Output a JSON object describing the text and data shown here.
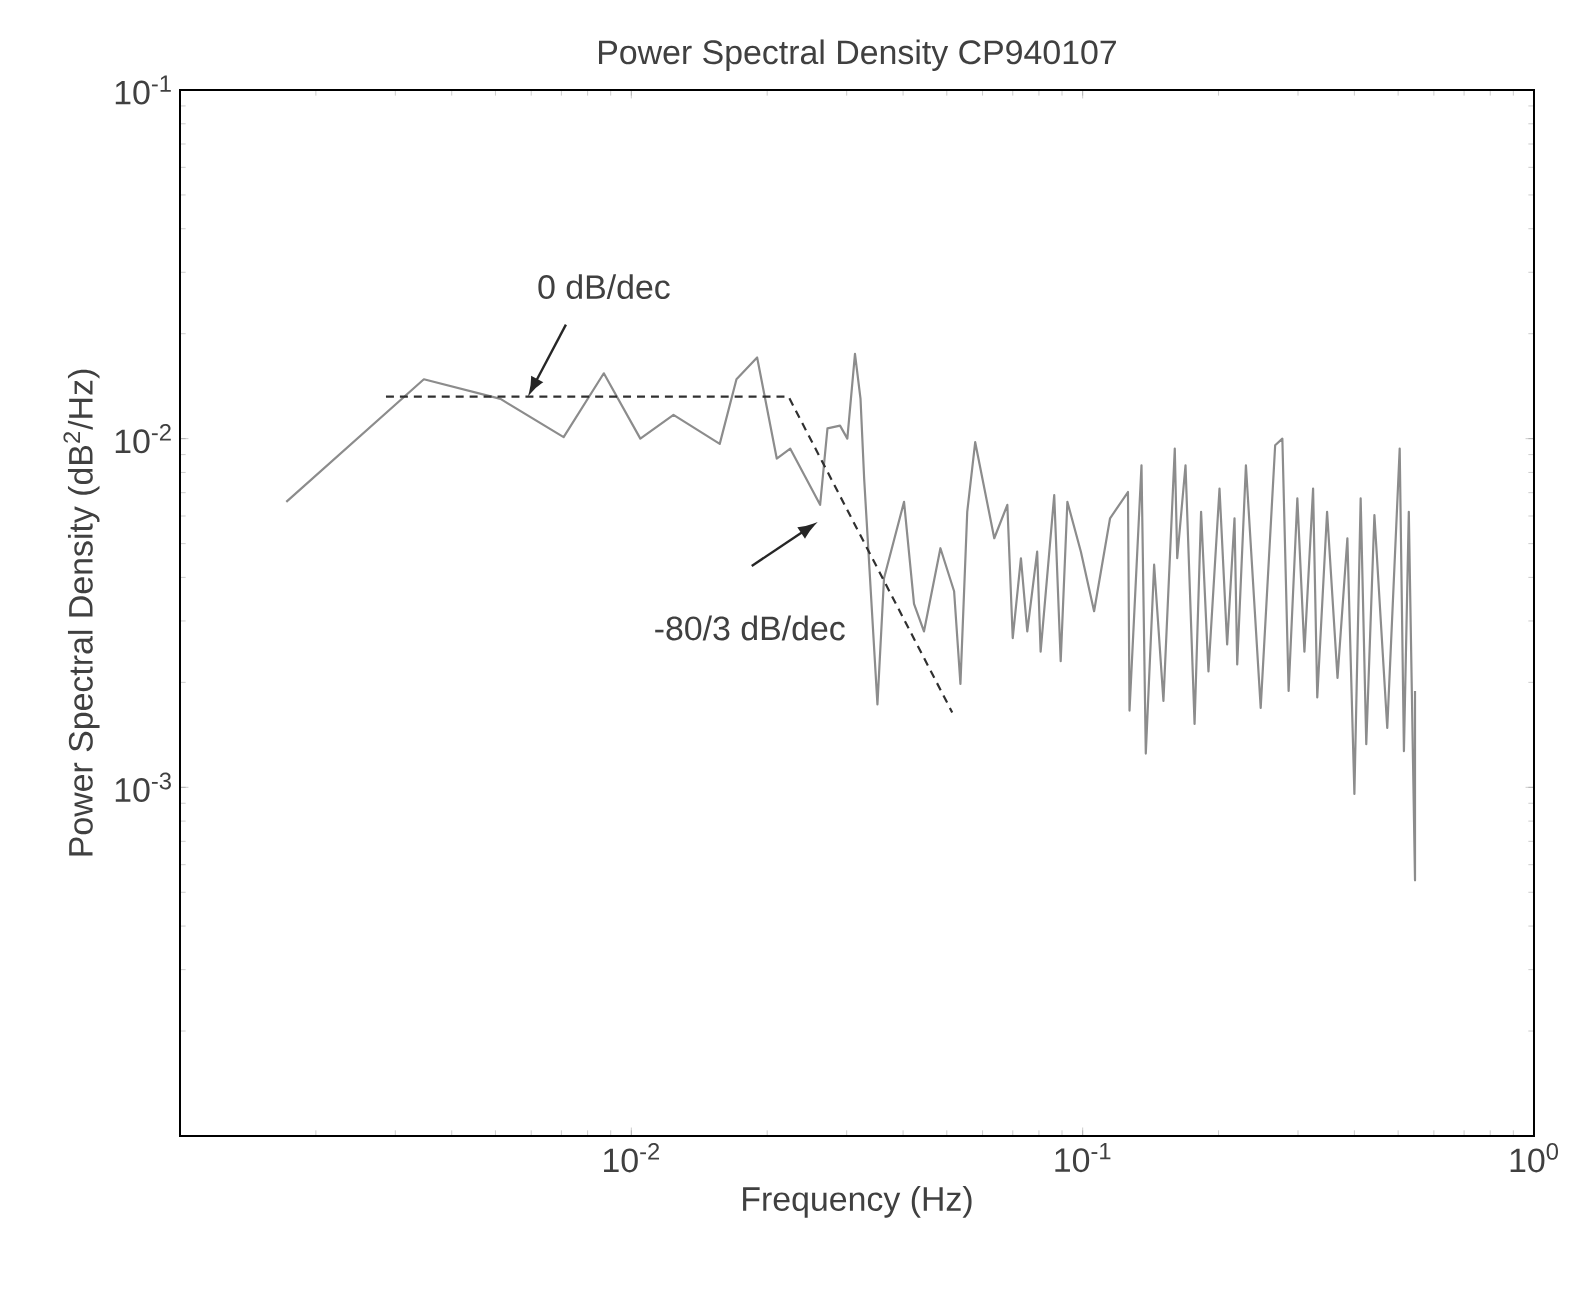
{
  "chart_data": {
    "type": "line",
    "title": "Power Spectral Density CP940107",
    "xlabel": "Frequency (Hz)",
    "ylabel": "Power Spectral Density (dB$^{2}$/Hz)",
    "log": "xy",
    "xlim": [
      0.001,
      1
    ],
    "ylim": [
      0.0001,
      0.1
    ],
    "xticks": [
      {
        "value": 0.001,
        "label": null
      },
      {
        "value": 0.01,
        "label": "10$^{-2}$"
      },
      {
        "value": 0.1,
        "label": "10$^{-1}$"
      },
      {
        "value": 1,
        "label": "10$^{0}$"
      }
    ],
    "yticks": [
      {
        "value": 0.0001,
        "label": null
      },
      {
        "value": 0.001,
        "label": "10$^{-3}$"
      },
      {
        "value": 0.01,
        "label": "10$^{-2}$"
      },
      {
        "value": 0.1,
        "label": "10$^{-1}$"
      }
    ],
    "annotations": [
      {
        "text": "0 dB/dec",
        "x": 0.0059,
        "y": 0.0132
      },
      "-80/3 dB/dec"
    ],
    "series": [
      {
        "line_style": "solid",
        "color": "#8c8c8c",
        "x": [
          0.00172,
          0.00347,
          0.00513,
          0.00708,
          0.00869,
          0.01047,
          0.0124,
          0.0157,
          0.0171,
          0.019,
          0.021,
          0.0225,
          0.0262,
          0.0272,
          0.029,
          0.0301,
          0.0313,
          0.0322,
          0.0328,
          0.0351,
          0.0363,
          0.0402,
          0.0423,
          0.0445,
          0.0484,
          0.0519,
          0.0536,
          0.0555,
          0.0578,
          0.0637,
          0.0681,
          0.07,
          0.073,
          0.0754,
          0.0793,
          0.0807,
          0.0865,
          0.0894,
          0.0925,
          0.0991,
          0.106,
          0.115,
          0.126,
          0.127,
          0.135,
          0.138,
          0.144,
          0.151,
          0.16,
          0.162,
          0.169,
          0.177,
          0.183,
          0.19,
          0.201,
          0.209,
          0.217,
          0.22,
          0.23,
          0.248,
          0.267,
          0.277,
          0.286,
          0.299,
          0.31,
          0.324,
          0.331,
          0.348,
          0.367,
          0.386,
          0.4,
          0.413,
          0.425,
          0.443,
          0.473,
          0.504,
          0.515,
          0.528,
          0.545,
          0.545
        ],
        "values": [
          0.00659,
          0.0148,
          0.013,
          0.0101,
          0.0154,
          0.01,
          0.0117,
          0.00966,
          0.0148,
          0.0171,
          0.00877,
          0.00936,
          0.00646,
          0.0107,
          0.0109,
          0.01,
          0.0175,
          0.013,
          0.00769,
          0.00173,
          0.00398,
          0.00659,
          0.00336,
          0.0028,
          0.00485,
          0.00365,
          0.00198,
          0.00617,
          0.00977,
          0.00518,
          0.00646,
          0.00268,
          0.00454,
          0.0028,
          0.00474,
          0.00245,
          0.00689,
          0.0023,
          0.00659,
          0.00474,
          0.0032,
          0.00591,
          0.00703,
          0.00166,
          0.00839,
          0.00125,
          0.00435,
          0.00177,
          0.00936,
          0.00454,
          0.00839,
          0.00152,
          0.00617,
          0.00215,
          0.00719,
          0.00257,
          0.00591,
          0.00225,
          0.00839,
          0.00169,
          0.00957,
          0.01,
          0.00189,
          0.00674,
          0.00245,
          0.00719,
          0.00181,
          0.00617,
          0.00206,
          0.00518,
          0.000957,
          0.00674,
          0.00133,
          0.00604,
          0.00148,
          0.00936,
          0.00127,
          0.00617,
          0.000541,
          0.00189
        ]
      },
      {
        "line_style": "dashed",
        "color": "#303030",
        "x": [
          0.00286,
          0.0223,
          0.0514
        ],
        "values": [
          0.0132,
          0.0132,
          0.00164
        ]
      }
    ]
  }
}
